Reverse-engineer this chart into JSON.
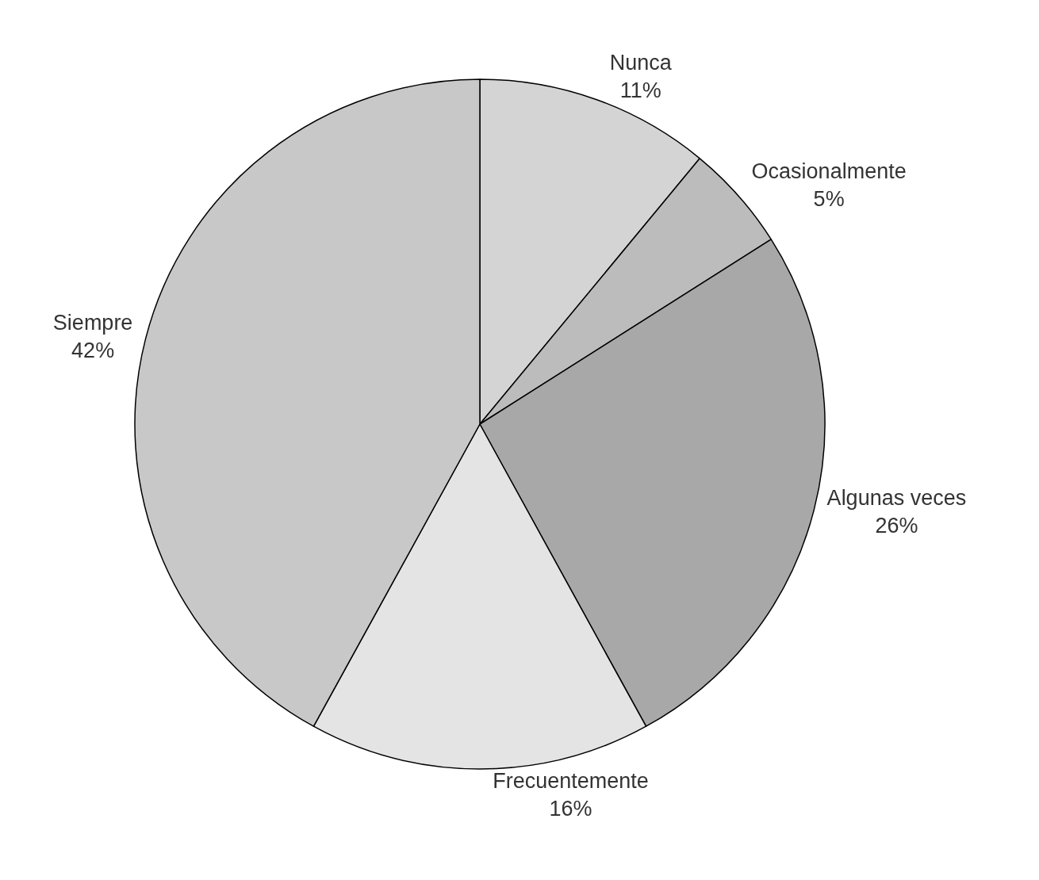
{
  "chart_data": {
    "type": "pie",
    "categories": [
      "Nunca",
      "Ocasionalmente",
      "Algunas veces",
      "Frecuentemente",
      "Siempre"
    ],
    "values": [
      11,
      5,
      26,
      16,
      42
    ],
    "value_labels": [
      "11%",
      "5%",
      "26%",
      "16%",
      "42%"
    ],
    "colors": [
      "#d4d4d4",
      "#bcbcbc",
      "#a8a8a8",
      "#e4e4e4",
      "#c8c8c8"
    ],
    "data_labels": true,
    "legend": false
  }
}
